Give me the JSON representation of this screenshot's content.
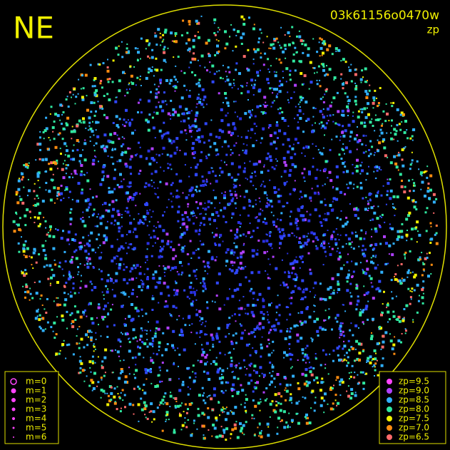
{
  "corner_label": "NE",
  "image_id": "03k61156o0470w",
  "color_key": "zp",
  "magnitude_legend": [
    "m=0",
    "m=1",
    "m=2",
    "m=3",
    "m=4",
    "m=5",
    "m=6"
  ],
  "zp_legend": [
    {
      "label": "zp=9.5",
      "color": "#ff44ff"
    },
    {
      "label": "zp=9.0",
      "color": "#b040ff"
    },
    {
      "label": "zp=8.5",
      "color": "#30b0ff"
    },
    {
      "label": "zp=8.0",
      "color": "#30e8a0"
    },
    {
      "label": "zp=7.5",
      "color": "#f0f000"
    },
    {
      "label": "zp=7.0",
      "color": "#ff8c10"
    },
    {
      "label": "zp=6.5",
      "color": "#ff6a6a"
    }
  ]
}
